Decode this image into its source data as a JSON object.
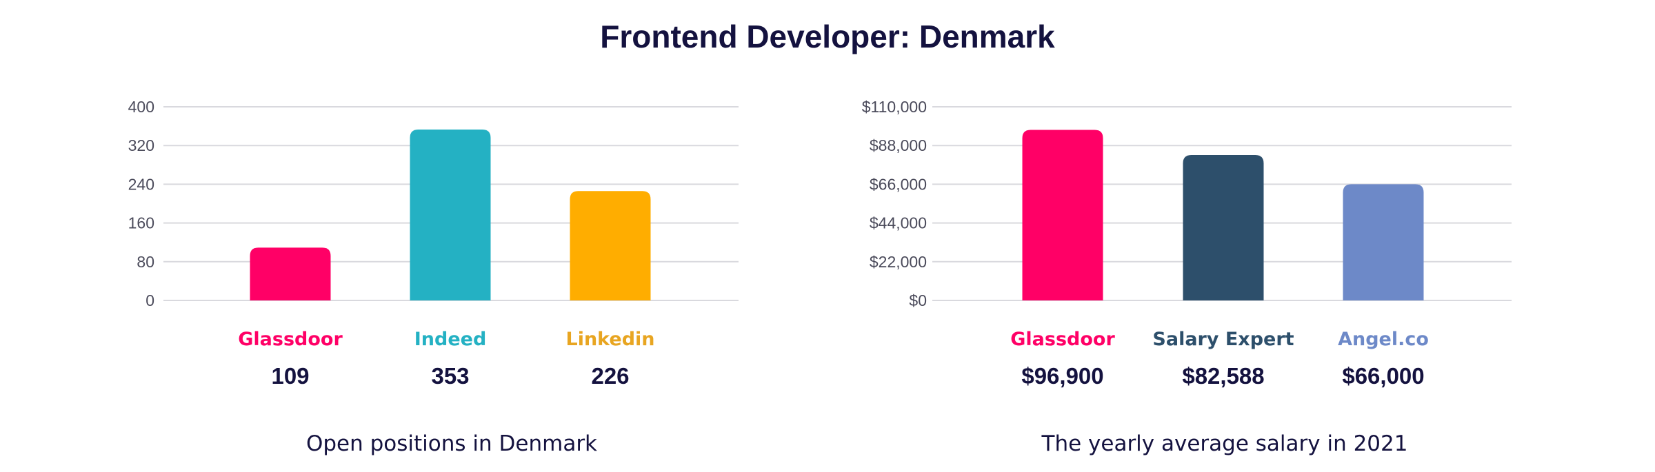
{
  "title": "Frontend Developer: Denmark",
  "chart_data": [
    {
      "type": "bar",
      "caption": "Open positions in Denmark",
      "categories": [
        "Glassdoor",
        "Indeed",
        "Linkedin"
      ],
      "values": [
        109,
        353,
        226
      ],
      "value_labels": [
        "109",
        "353",
        "226"
      ],
      "colors": [
        "#ff0066",
        "#24b1c3",
        "#ffad00"
      ],
      "label_colors": [
        "#ff0066",
        "#24b1c3",
        "#e8a521"
      ],
      "ylim": [
        0,
        400
      ],
      "yticks": [
        0,
        80,
        160,
        240,
        320,
        400
      ],
      "ytick_labels": [
        "0",
        "80",
        "160",
        "240",
        "320",
        "400"
      ],
      "grid": true
    },
    {
      "type": "bar",
      "caption": "The yearly average salary in 2021",
      "categories": [
        "Glassdoor",
        "Salary Expert",
        "Angel.co"
      ],
      "values": [
        96900,
        82588,
        66000
      ],
      "value_labels": [
        "$96,900",
        "$82,588",
        "$66,000"
      ],
      "colors": [
        "#ff0066",
        "#2d4f6b",
        "#6d89c8"
      ],
      "label_colors": [
        "#ff0066",
        "#2d4f6b",
        "#6d89c8"
      ],
      "ylim": [
        0,
        110000
      ],
      "yticks": [
        0,
        22000,
        44000,
        66000,
        88000,
        110000
      ],
      "ytick_labels": [
        "$0",
        "$22,000",
        "$44,000",
        "$66,000",
        "$88,000",
        "$110,000"
      ],
      "grid": true
    }
  ]
}
